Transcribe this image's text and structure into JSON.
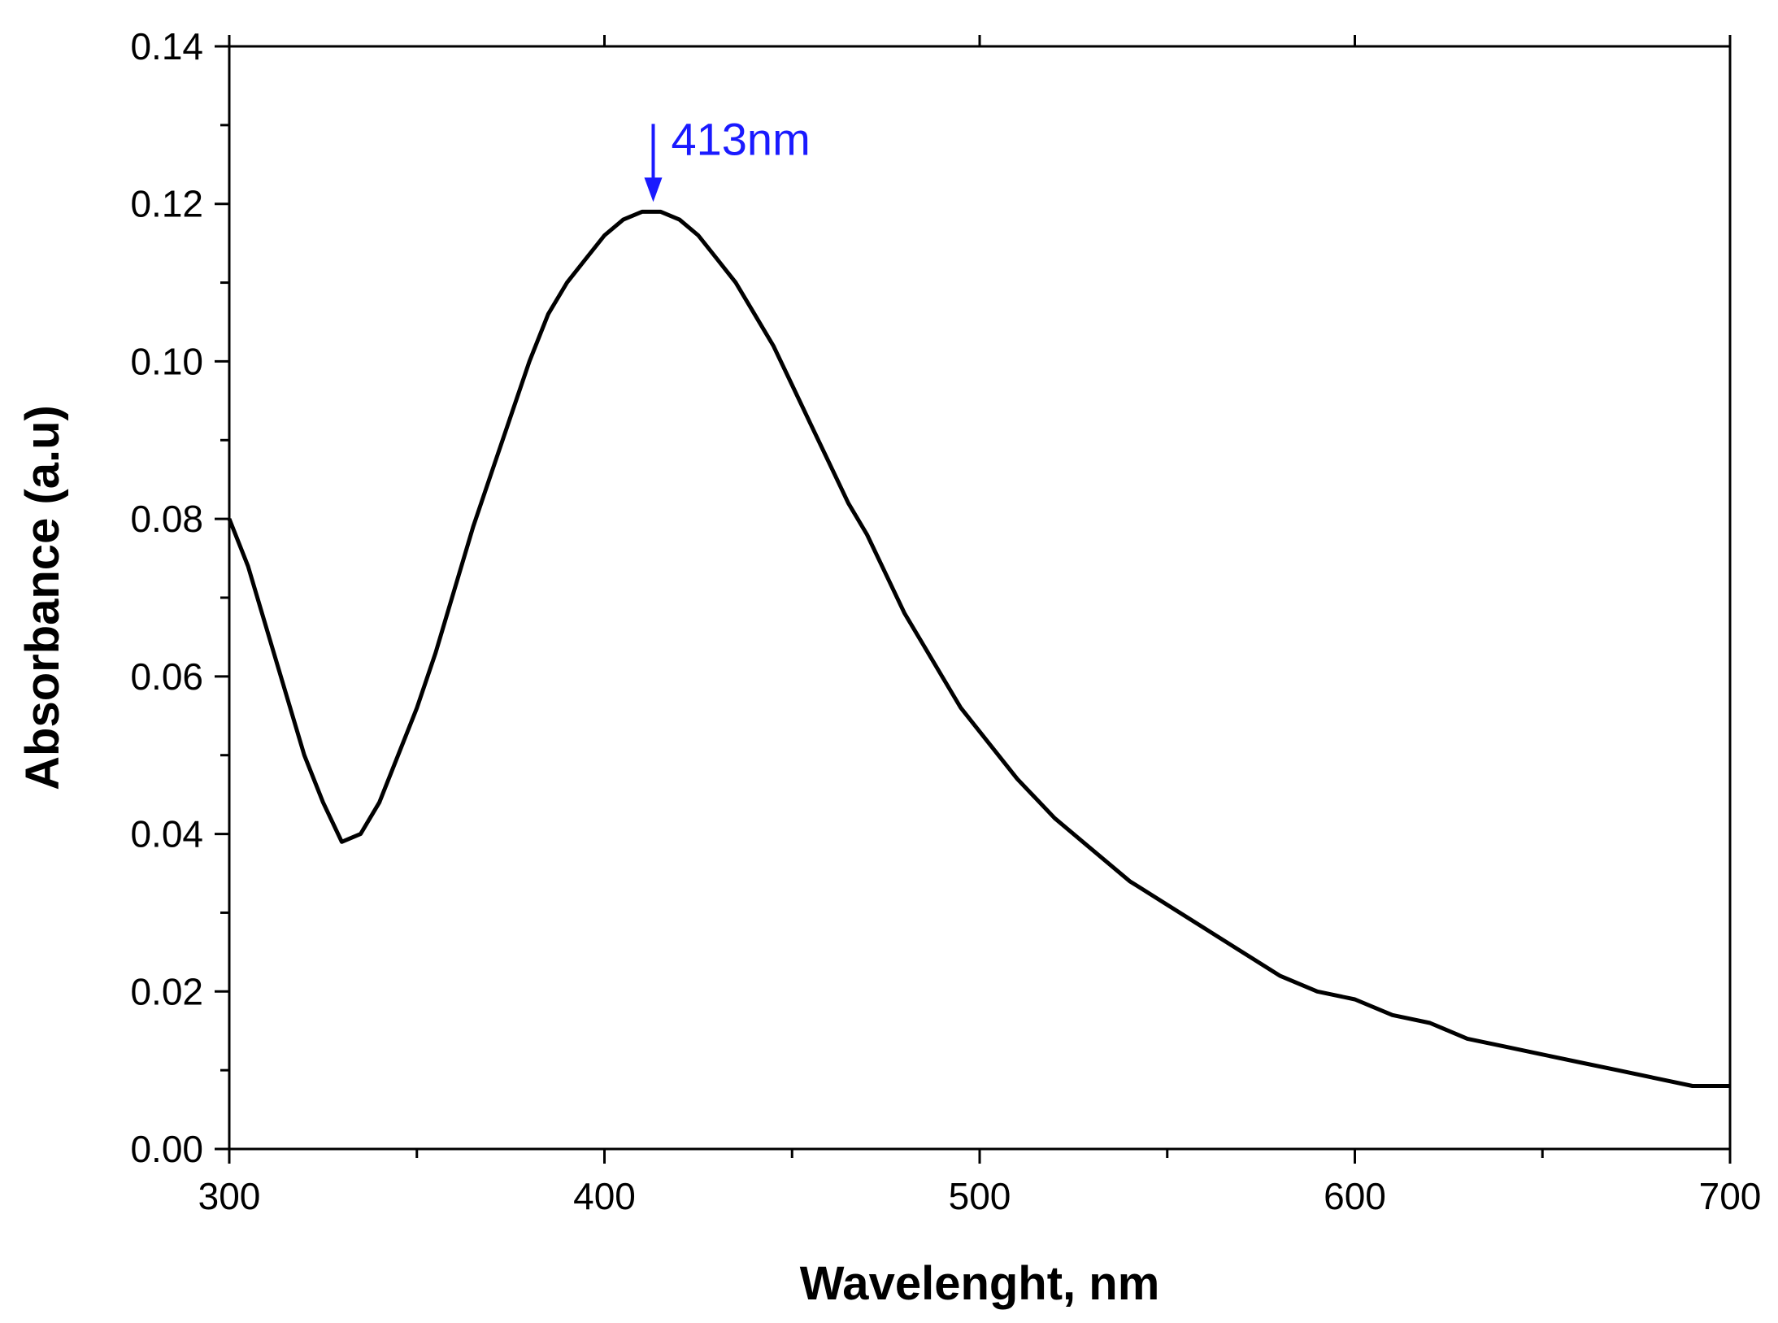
{
  "chart_data": {
    "type": "line",
    "title": "",
    "xlabel": "Wavelenght, nm",
    "ylabel": "Absorbance (a.u)",
    "xlim": [
      300,
      700
    ],
    "ylim": [
      0.0,
      0.14
    ],
    "x_ticks": [
      "300",
      "400",
      "500",
      "600",
      "700"
    ],
    "y_ticks": [
      "0.00",
      "0.02",
      "0.04",
      "0.06",
      "0.08",
      "0.10",
      "0.12",
      "0.14"
    ],
    "grid": false,
    "series": [
      {
        "name": "Absorbance",
        "color": "#000000",
        "x": [
          300,
          305,
          310,
          315,
          320,
          325,
          330,
          335,
          340,
          345,
          350,
          355,
          360,
          365,
          370,
          375,
          380,
          385,
          390,
          395,
          400,
          405,
          410,
          413,
          415,
          420,
          425,
          430,
          435,
          440,
          445,
          450,
          455,
          460,
          465,
          470,
          475,
          480,
          485,
          490,
          495,
          500,
          510,
          520,
          530,
          540,
          550,
          560,
          570,
          580,
          590,
          600,
          610,
          620,
          630,
          640,
          650,
          660,
          670,
          680,
          690,
          700
        ],
        "values": [
          0.08,
          0.074,
          0.066,
          0.058,
          0.05,
          0.044,
          0.039,
          0.04,
          0.044,
          0.05,
          0.056,
          0.063,
          0.071,
          0.079,
          0.086,
          0.093,
          0.1,
          0.106,
          0.11,
          0.113,
          0.116,
          0.118,
          0.119,
          0.119,
          0.119,
          0.118,
          0.116,
          0.113,
          0.11,
          0.106,
          0.102,
          0.097,
          0.092,
          0.087,
          0.082,
          0.078,
          0.073,
          0.068,
          0.064,
          0.06,
          0.056,
          0.053,
          0.047,
          0.042,
          0.038,
          0.034,
          0.031,
          0.028,
          0.025,
          0.022,
          0.02,
          0.019,
          0.017,
          0.016,
          0.014,
          0.013,
          0.012,
          0.011,
          0.01,
          0.009,
          0.008,
          0.008
        ]
      }
    ],
    "annotations": [
      {
        "text": "413nm",
        "x": 413,
        "y": 0.119,
        "color": "#1a1aff"
      }
    ]
  }
}
